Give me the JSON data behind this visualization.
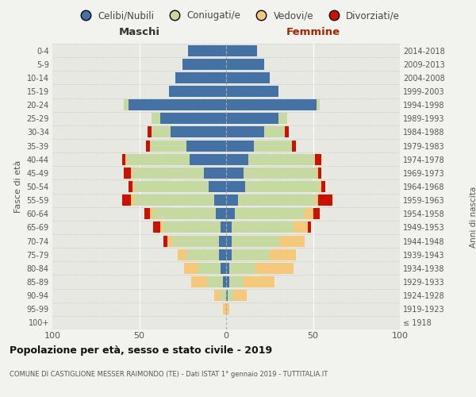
{
  "age_groups": [
    "100+",
    "95-99",
    "90-94",
    "85-89",
    "80-84",
    "75-79",
    "70-74",
    "65-69",
    "60-64",
    "55-59",
    "50-54",
    "45-49",
    "40-44",
    "35-39",
    "30-34",
    "25-29",
    "20-24",
    "15-19",
    "10-14",
    "5-9",
    "0-4"
  ],
  "birth_years": [
    "≤ 1918",
    "1919-1923",
    "1924-1928",
    "1929-1933",
    "1934-1938",
    "1939-1943",
    "1944-1948",
    "1949-1953",
    "1954-1958",
    "1959-1963",
    "1964-1968",
    "1969-1973",
    "1974-1978",
    "1979-1983",
    "1984-1988",
    "1989-1993",
    "1994-1998",
    "1999-2003",
    "2004-2008",
    "2009-2013",
    "2014-2018"
  ],
  "colors": {
    "celibi": "#4472a4",
    "coniugati": "#c5d9a0",
    "vedovi": "#f5c97a",
    "divorziati": "#cc1100"
  },
  "maschi": {
    "celibi": [
      0,
      0,
      0,
      2,
      3,
      4,
      4,
      3,
      6,
      7,
      10,
      13,
      21,
      23,
      32,
      38,
      56,
      33,
      29,
      25,
      22
    ],
    "coniugati": [
      0,
      0,
      3,
      9,
      13,
      19,
      27,
      33,
      36,
      46,
      43,
      41,
      36,
      21,
      11,
      5,
      3,
      0,
      0,
      0,
      0
    ],
    "vedovi": [
      0,
      2,
      4,
      9,
      8,
      5,
      3,
      2,
      2,
      2,
      1,
      1,
      1,
      0,
      0,
      0,
      0,
      0,
      0,
      0,
      0
    ],
    "divorziati": [
      0,
      0,
      0,
      0,
      0,
      0,
      2,
      4,
      3,
      5,
      2,
      4,
      2,
      2,
      2,
      0,
      0,
      0,
      0,
      0,
      0
    ]
  },
  "femmine": {
    "celibi": [
      0,
      0,
      1,
      2,
      2,
      3,
      3,
      3,
      5,
      7,
      11,
      10,
      13,
      16,
      22,
      30,
      52,
      30,
      25,
      22,
      18
    ],
    "coniugati": [
      0,
      0,
      3,
      8,
      15,
      22,
      28,
      36,
      40,
      44,
      43,
      42,
      38,
      22,
      12,
      5,
      2,
      0,
      0,
      0,
      0
    ],
    "vedovi": [
      0,
      2,
      8,
      18,
      22,
      15,
      14,
      8,
      5,
      2,
      1,
      1,
      0,
      0,
      0,
      0,
      0,
      0,
      0,
      0,
      0
    ],
    "divorziati": [
      0,
      0,
      0,
      0,
      0,
      0,
      0,
      2,
      4,
      8,
      2,
      2,
      4,
      2,
      2,
      0,
      0,
      0,
      0,
      0,
      0
    ]
  },
  "xlim": 100,
  "title": "Popolazione per età, sesso e stato civile - 2019",
  "subtitle": "COMUNE DI CASTIGLIONE MESSER RAIMONDO (TE) - Dati ISTAT 1° gennaio 2019 - TUTTITALIA.IT",
  "ylabel_left": "Fasce di età",
  "ylabel_right": "Anni di nascita",
  "xlabel_left": "Maschi",
  "xlabel_right": "Femmine",
  "bg_color": "#f2f2ee",
  "plot_bg_color": "#e8e8e2",
  "grid_color": "#ffffff",
  "hgrid_color": "#cccccc"
}
